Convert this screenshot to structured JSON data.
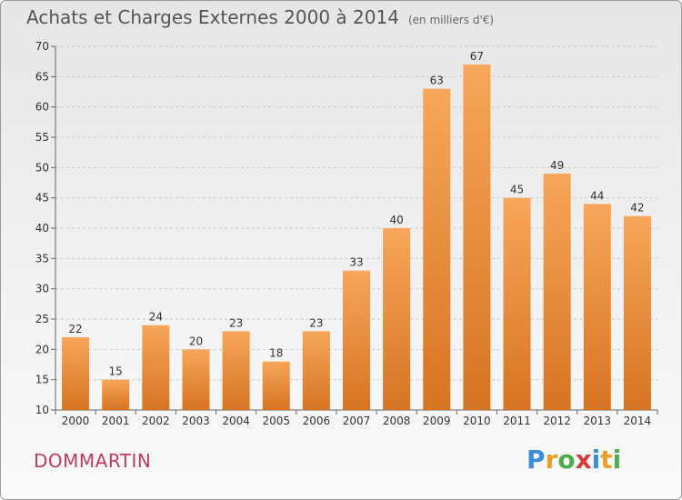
{
  "header": {
    "title": "Achats et Charges Externes 2000 à 2014",
    "unit": "(en milliers d'€)"
  },
  "footer": {
    "commune": "DOMMARTIN",
    "logo_letters": [
      "P",
      "r",
      "o",
      "x",
      "i",
      "t",
      "i"
    ],
    "logo_colors": [
      "#3a8fd6",
      "#e9a12a",
      "#4cae4c",
      "#d93b3b",
      "#3a8fd6",
      "#e9a12a",
      "#4cae4c"
    ]
  },
  "colors": {
    "bar_light": "#f7a65a",
    "bar_dark": "#d77422",
    "grid": "#c8c8c8"
  },
  "chart_data": {
    "type": "bar",
    "title": "Achats et Charges Externes 2000 à 2014",
    "subtitle": "(en milliers d'€)",
    "categories": [
      "2000",
      "2001",
      "2002",
      "2003",
      "2004",
      "2005",
      "2006",
      "2007",
      "2008",
      "2009",
      "2010",
      "2011",
      "2012",
      "2013",
      "2014"
    ],
    "values": [
      22,
      15,
      24,
      20,
      23,
      18,
      23,
      33,
      40,
      63,
      67,
      45,
      49,
      44,
      42
    ],
    "ylim": [
      10,
      70
    ],
    "yticks": [
      10,
      15,
      20,
      25,
      30,
      35,
      40,
      45,
      50,
      55,
      60,
      65,
      70
    ],
    "grid": true,
    "data_labels": true
  }
}
